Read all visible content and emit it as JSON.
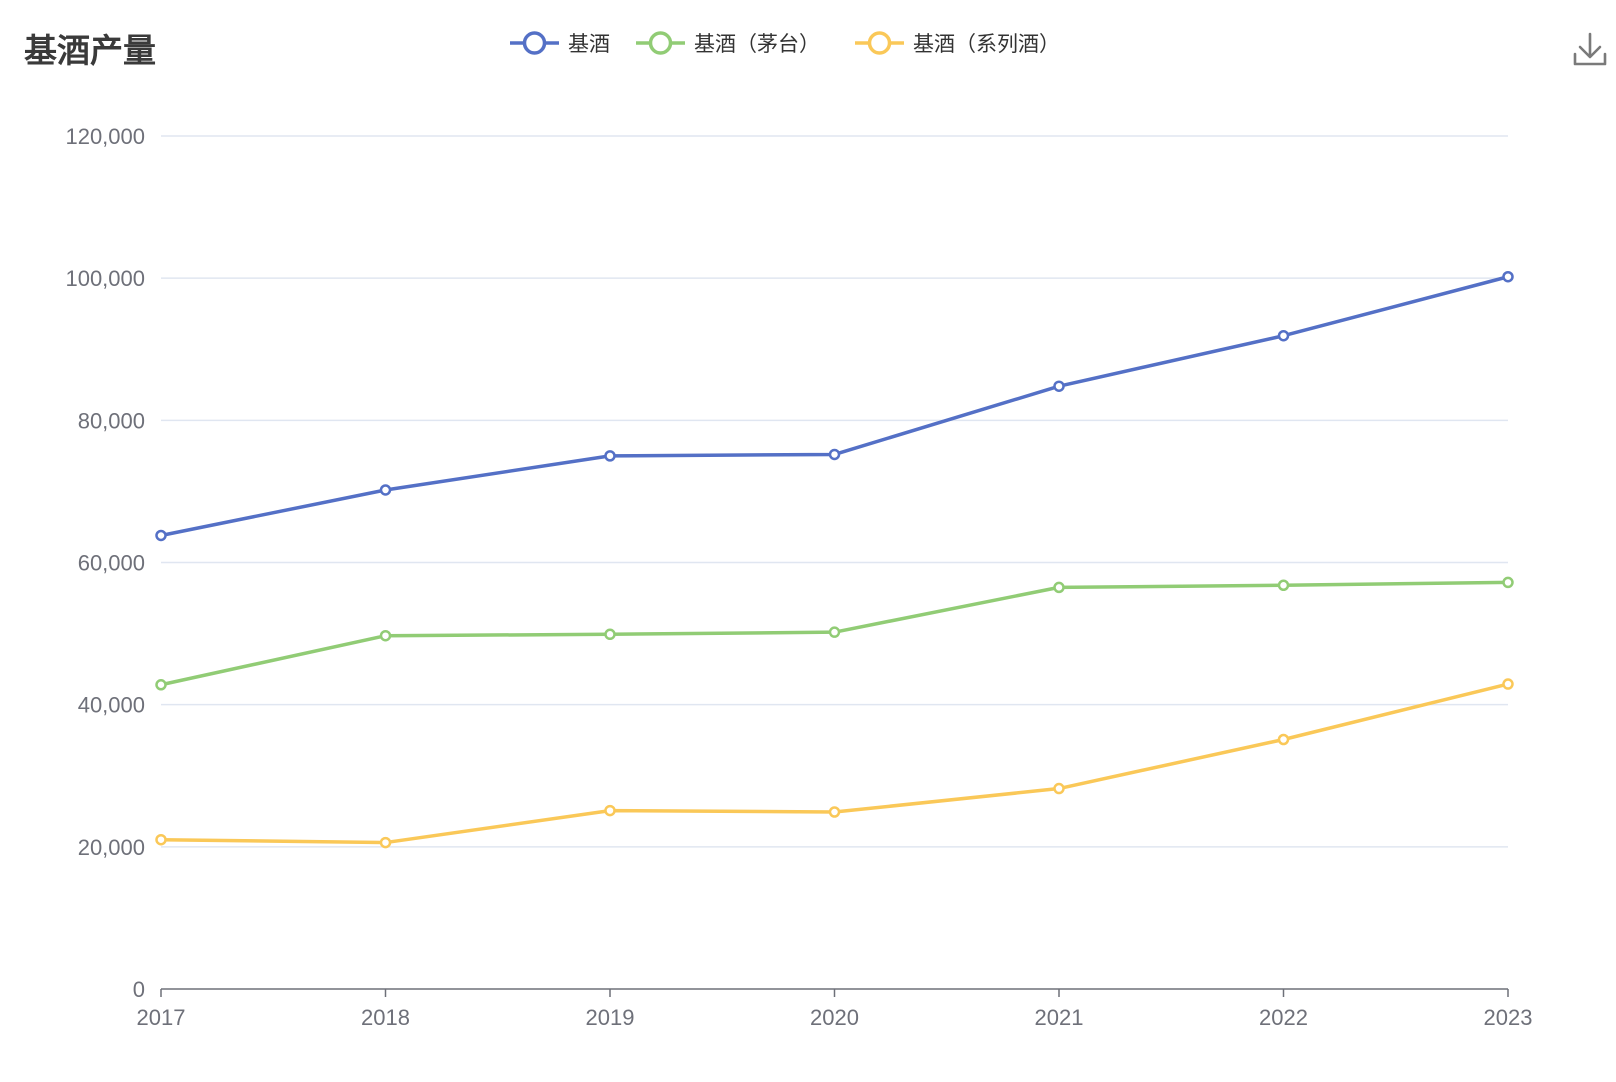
{
  "chart_data": {
    "type": "line",
    "title": "基酒产量",
    "x": [
      "2017",
      "2018",
      "2019",
      "2020",
      "2021",
      "2022",
      "2023"
    ],
    "ylim": [
      0,
      120000
    ],
    "yticks": [
      0,
      20000,
      40000,
      60000,
      80000,
      100000,
      120000
    ],
    "ytick_labels": [
      "0",
      "20,000",
      "40,000",
      "60,000",
      "80,000",
      "100,000",
      "120,000"
    ],
    "grid": true,
    "legend_position": "top-center",
    "series": [
      {
        "name": "基酒",
        "color": "#5470c6",
        "values": [
          63800,
          70200,
          75000,
          75200,
          84800,
          91900,
          100200
        ]
      },
      {
        "name": "基酒（茅台）",
        "color": "#91cc75",
        "values": [
          42800,
          49700,
          49900,
          50200,
          56500,
          56800,
          57200
        ]
      },
      {
        "name": "基酒（系列酒）",
        "color": "#fac858",
        "values": [
          21000,
          20600,
          25100,
          24900,
          28200,
          35100,
          42900
        ]
      }
    ]
  },
  "toolbar": {
    "download_icon": "download-icon"
  }
}
